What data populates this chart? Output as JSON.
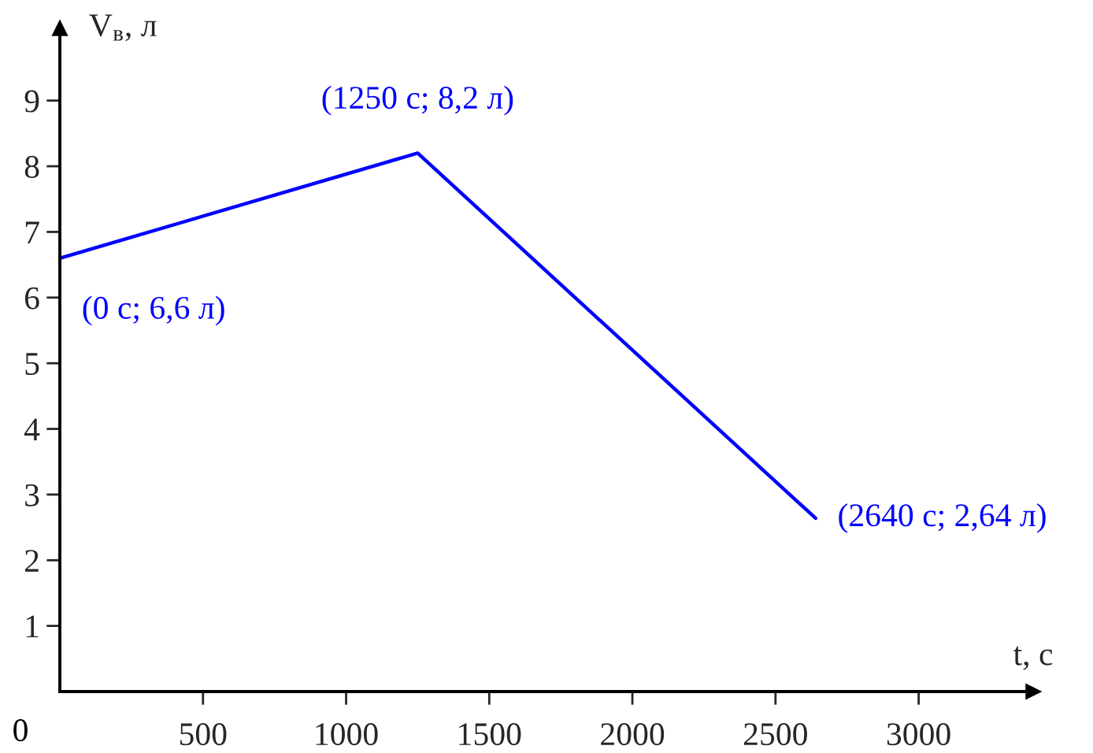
{
  "chart_data": {
    "type": "line",
    "xlabel": "t, с",
    "ylabel": "V$_{в}$, л",
    "series": [
      {
        "x": [
          0,
          1250,
          2640
        ],
        "values": [
          6.6,
          8.2,
          2.64
        ],
        "color": "#0000ff"
      }
    ],
    "xlim": [
      0,
      3400
    ],
    "ylim": [
      0,
      10.1
    ],
    "xticks": [
      500,
      1000,
      1500,
      2000,
      2500,
      3000
    ],
    "yticks": [
      1,
      2,
      3,
      4,
      5,
      6,
      7,
      8,
      9
    ],
    "annotations": [
      {
        "text": "(0 с; 6,6 л)",
        "x": 0,
        "y": 6.6
      },
      {
        "text": "(1250 с; 8,2 л)",
        "x": 1250,
        "y": 8.2
      },
      {
        "text": "(2640 с; 2,64 л)",
        "x": 2640,
        "y": 2.64
      },
      "0"
    ],
    "grid": false,
    "marker": "none",
    "line_style": "solid"
  }
}
